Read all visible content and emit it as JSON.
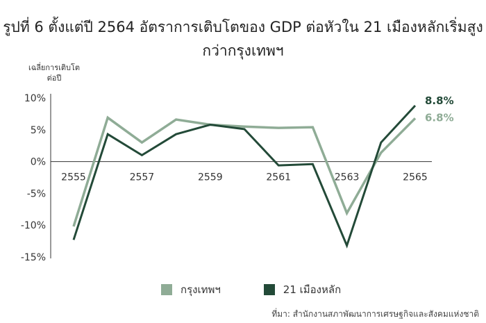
{
  "chart_data": {
    "type": "line",
    "title": "รูปที่ 6 ตั้งแต่ปี 2564 อัตราการเติบโตของ GDP ต่อหัวใน 21 เมืองหลักเริ่มสูงกว่ากรุงเทพฯ",
    "ylabel": "เฉลี่ยการเติบโตต่อปี",
    "xlabel": "",
    "x": [
      2555,
      2556,
      2557,
      2558,
      2559,
      2560,
      2561,
      2562,
      2563,
      2564,
      2565
    ],
    "x_tick_labels": [
      "2555",
      "2557",
      "2559",
      "2561",
      "2563",
      "2565"
    ],
    "y_ticks": [
      10,
      5,
      0,
      -5,
      -10,
      -15
    ],
    "y_tick_labels": [
      "10%",
      "5%",
      "0%",
      "-5%",
      "-10%",
      "-15%"
    ],
    "ylim": [
      -15,
      10
    ],
    "grid": false,
    "series": [
      {
        "name": "กรุงเทพฯ",
        "color": "#8fac96",
        "values": [
          -10.2,
          6.9,
          3.0,
          6.6,
          5.8,
          5.5,
          5.3,
          5.4,
          -8.1,
          1.4,
          6.8
        ],
        "end_label": "6.8%"
      },
      {
        "name": "21 เมืองหลัก",
        "color": "#234a38",
        "values": [
          -12.3,
          4.3,
          1.0,
          4.3,
          5.8,
          5.1,
          -0.6,
          -0.4,
          -13.2,
          3.0,
          8.8
        ],
        "end_label": "8.8%"
      }
    ],
    "legend_position": "bottom",
    "source": "ที่มา: สำนักงานสภาพัฒนาการเศรษฐกิจและสังคมแห่งชาติ"
  }
}
